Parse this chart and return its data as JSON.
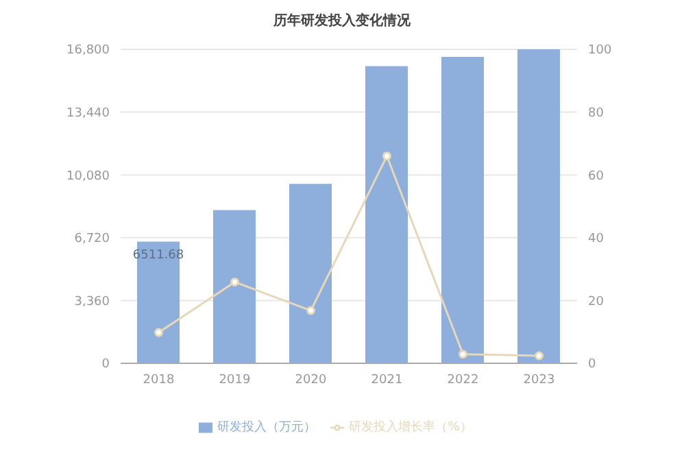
{
  "chart_data": {
    "type": "bar",
    "title": "历年研发投入变化情况",
    "categories": [
      "2018",
      "2019",
      "2020",
      "2021",
      "2022",
      "2023"
    ],
    "series": [
      {
        "name": "研发投入（万元）",
        "color": "#8eaedc",
        "values": [
          6511.68,
          8200,
          9600,
          15900,
          16400,
          16800
        ],
        "value_labels": [
          "6511.68",
          null,
          null,
          null,
          null,
          null
        ]
      },
      {
        "name": "研发投入增长率（%）",
        "type": "line",
        "axis": "y2",
        "color": "#e6d8b8",
        "values": [
          9.8,
          25.9,
          16.8,
          66,
          2.9,
          2.4
        ]
      }
    ],
    "ylim": [
      0,
      16800
    ],
    "yticks": [
      {
        "value": 0,
        "label": "0"
      },
      {
        "value": 3360,
        "label": "3,360"
      },
      {
        "value": 6720,
        "label": "6,720"
      },
      {
        "value": 10080,
        "label": "10,080"
      },
      {
        "value": 13440,
        "label": "13,440"
      },
      {
        "value": 16800,
        "label": "16,800"
      }
    ],
    "y2lim": [
      0,
      100
    ],
    "y2ticks": [
      0,
      20,
      40,
      60,
      80,
      100
    ],
    "grid": "y",
    "legend": "bottom",
    "marker": "circle"
  }
}
